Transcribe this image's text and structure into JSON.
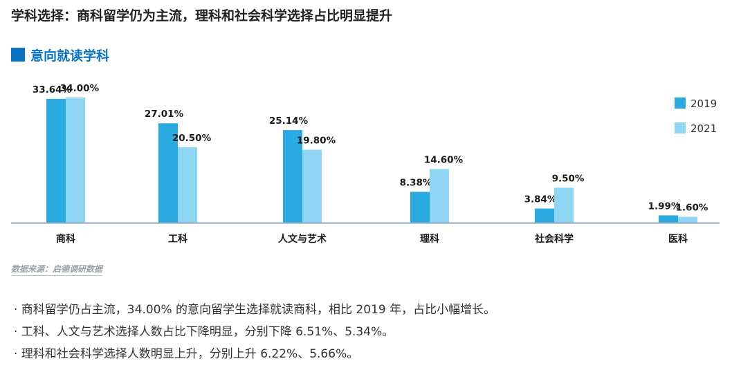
{
  "header": {
    "title": "学科选择：商科留学仍为主流，理科和社会科学选择占比明显提升",
    "section_title": "意向就读学科"
  },
  "chart_data": {
    "type": "bar",
    "title": "意向就读学科",
    "categories": [
      "商科",
      "工科",
      "人文与艺术",
      "理科",
      "社会科学",
      "医科"
    ],
    "series": [
      {
        "name": "2019",
        "values": [
          33.64,
          27.01,
          25.14,
          8.38,
          3.84,
          1.99
        ],
        "labels": [
          "33.64%",
          "27.01%",
          "25.14%",
          "8.38%",
          "3.84%",
          "1.99%"
        ]
      },
      {
        "name": "2021",
        "values": [
          34.0,
          20.5,
          19.8,
          14.6,
          9.5,
          1.6
        ],
        "labels": [
          "34.00%",
          "20.50%",
          "19.80%",
          "14.60%",
          "9.50%",
          "1.60%"
        ]
      }
    ],
    "ylim": [
      0,
      34
    ],
    "grid": false,
    "legend": "top-right",
    "xlabel": "",
    "ylabel": ""
  },
  "colors": {
    "series_2019": "#29abe2",
    "series_2021": "#8fd6f4",
    "axis": "#8da4b8",
    "accent": "#0a73c4"
  },
  "source": "数据来源：启德调研数据",
  "notes": [
    "· 商科留学仍占主流，34.00% 的意向留学生选择就读商科，相比 2019 年，占比小幅增长。",
    "· 工科、人文与艺术选择人数占比下降明显，分别下降 6.51%、5.34%。",
    "· 理科和社会科学选择人数明显上升，分别上升 6.22%、5.66%。"
  ]
}
